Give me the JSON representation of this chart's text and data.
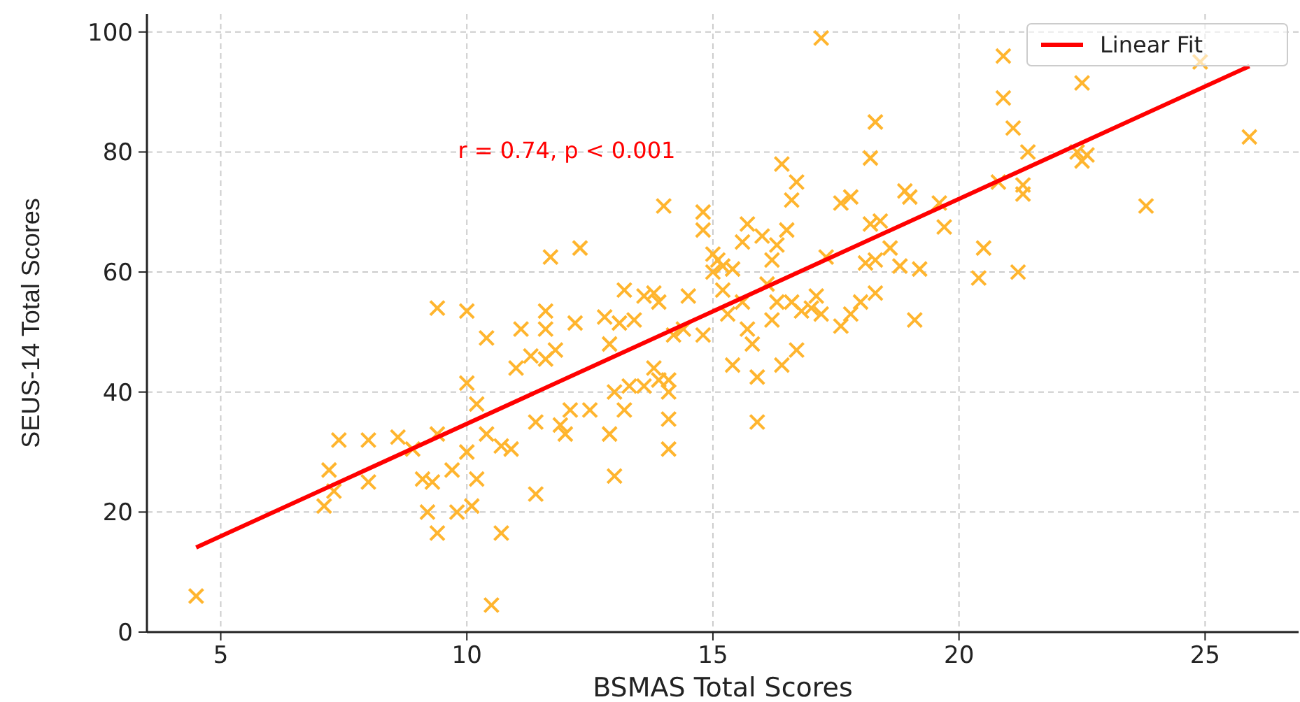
{
  "chart_data": {
    "type": "scatter",
    "xlabel": "BSMAS Total Scores",
    "ylabel": "SEUS-14 Total Scores",
    "xlim": [
      3.5,
      26.9
    ],
    "ylim": [
      0,
      103
    ],
    "xticks": [
      5,
      10,
      15,
      20,
      25
    ],
    "yticks": [
      0,
      20,
      40,
      60,
      80,
      100
    ],
    "grid": true,
    "legend": "top right",
    "annotations": [
      "r = 0.74, p < 0.001"
    ],
    "series": [
      {
        "color": "#ffb52e",
        "marker": "cross",
        "x": [
          4.5,
          7.1,
          7.2,
          7.3,
          7.4,
          8,
          8,
          8.6,
          8.9,
          9.1,
          9.2,
          9.3,
          9.4,
          9.4,
          9.4,
          9.7,
          9.8,
          10,
          10,
          10,
          10.1,
          10.2,
          10.2,
          10.4,
          10.4,
          10.5,
          10.7,
          10.7,
          10.9,
          11,
          11.1,
          11.3,
          11.4,
          11.4,
          11.6,
          11.6,
          11.6,
          11.7,
          11.8,
          11.9,
          12,
          12.1,
          12.2,
          12.3,
          12.5,
          12.8,
          12.9,
          12.9,
          13,
          13,
          13.1,
          13.2,
          13.2,
          13.3,
          13.4,
          13.6,
          13.6,
          13.8,
          13.8,
          13.9,
          13.9,
          14,
          14.1,
          14.1,
          14.1,
          14.1,
          14.2,
          14.4,
          14.5,
          14.8,
          14.8,
          14.8,
          15,
          15,
          15.1,
          15.2,
          15.2,
          15.3,
          15.4,
          15.4,
          15.6,
          15.6,
          15.7,
          15.7,
          15.8,
          15.9,
          15.9,
          16,
          16.1,
          16.2,
          16.2,
          16.3,
          16.3,
          16.4,
          16.4,
          16.5,
          16.6,
          16.6,
          16.7,
          16.7,
          16.8,
          17,
          17.1,
          17.2,
          17.2,
          17.3,
          17.6,
          17.6,
          17.8,
          17.8,
          18,
          18.1,
          18.2,
          18.2,
          18.3,
          18.3,
          18.3,
          18.4,
          18.6,
          18.8,
          18.9,
          19,
          19.1,
          19.2,
          19.6,
          19.7,
          20.4,
          20.5,
          20.8,
          20.9,
          20.9,
          21.1,
          21.2,
          21.3,
          21.3,
          21.4,
          22.4,
          22.5,
          22.5,
          22.6,
          23.8,
          24.9,
          25.9
        ],
        "values": [
          6,
          21,
          27,
          23.5,
          32,
          25,
          32,
          32.5,
          30.5,
          25.5,
          20,
          25,
          16.5,
          33,
          54,
          27,
          20,
          30,
          41.5,
          53.5,
          21,
          25.5,
          38,
          33,
          49,
          4.5,
          16.5,
          31,
          30.5,
          44,
          50.5,
          46,
          23,
          35,
          45.5,
          50.5,
          53.5,
          62.5,
          47,
          34.5,
          33,
          37,
          51.5,
          64,
          37,
          52.5,
          33,
          48,
          40,
          26,
          51.5,
          57,
          37,
          41,
          52,
          41,
          56,
          56.5,
          44,
          42,
          55,
          71,
          40,
          35.5,
          30.5,
          42,
          49.5,
          50.5,
          56,
          49.5,
          67,
          70,
          60,
          63,
          62,
          61,
          57,
          53,
          60.5,
          44.5,
          55,
          65,
          68,
          50.5,
          48,
          35,
          42.5,
          66,
          58,
          52,
          62,
          55,
          64.5,
          44.5,
          78,
          67,
          55,
          72,
          47,
          75,
          53.5,
          54,
          56,
          99,
          53,
          62.5,
          51,
          71.5,
          72.5,
          53,
          55,
          61.5,
          68,
          79,
          56.5,
          62,
          85,
          68.5,
          64,
          61,
          73.5,
          72.5,
          52,
          60.5,
          71.5,
          67.5,
          59,
          64,
          75,
          96,
          89,
          84,
          60,
          73,
          74.5,
          80,
          80,
          78.5,
          91.5,
          79.5,
          71,
          95,
          82.5
        ]
      },
      {
        "type": "line",
        "name": "Linear Fit",
        "color": "#ff0000",
        "line_style": "solid",
        "x": [
          4.5,
          25.9
        ],
        "values": [
          14.1,
          94.3
        ]
      }
    ]
  }
}
